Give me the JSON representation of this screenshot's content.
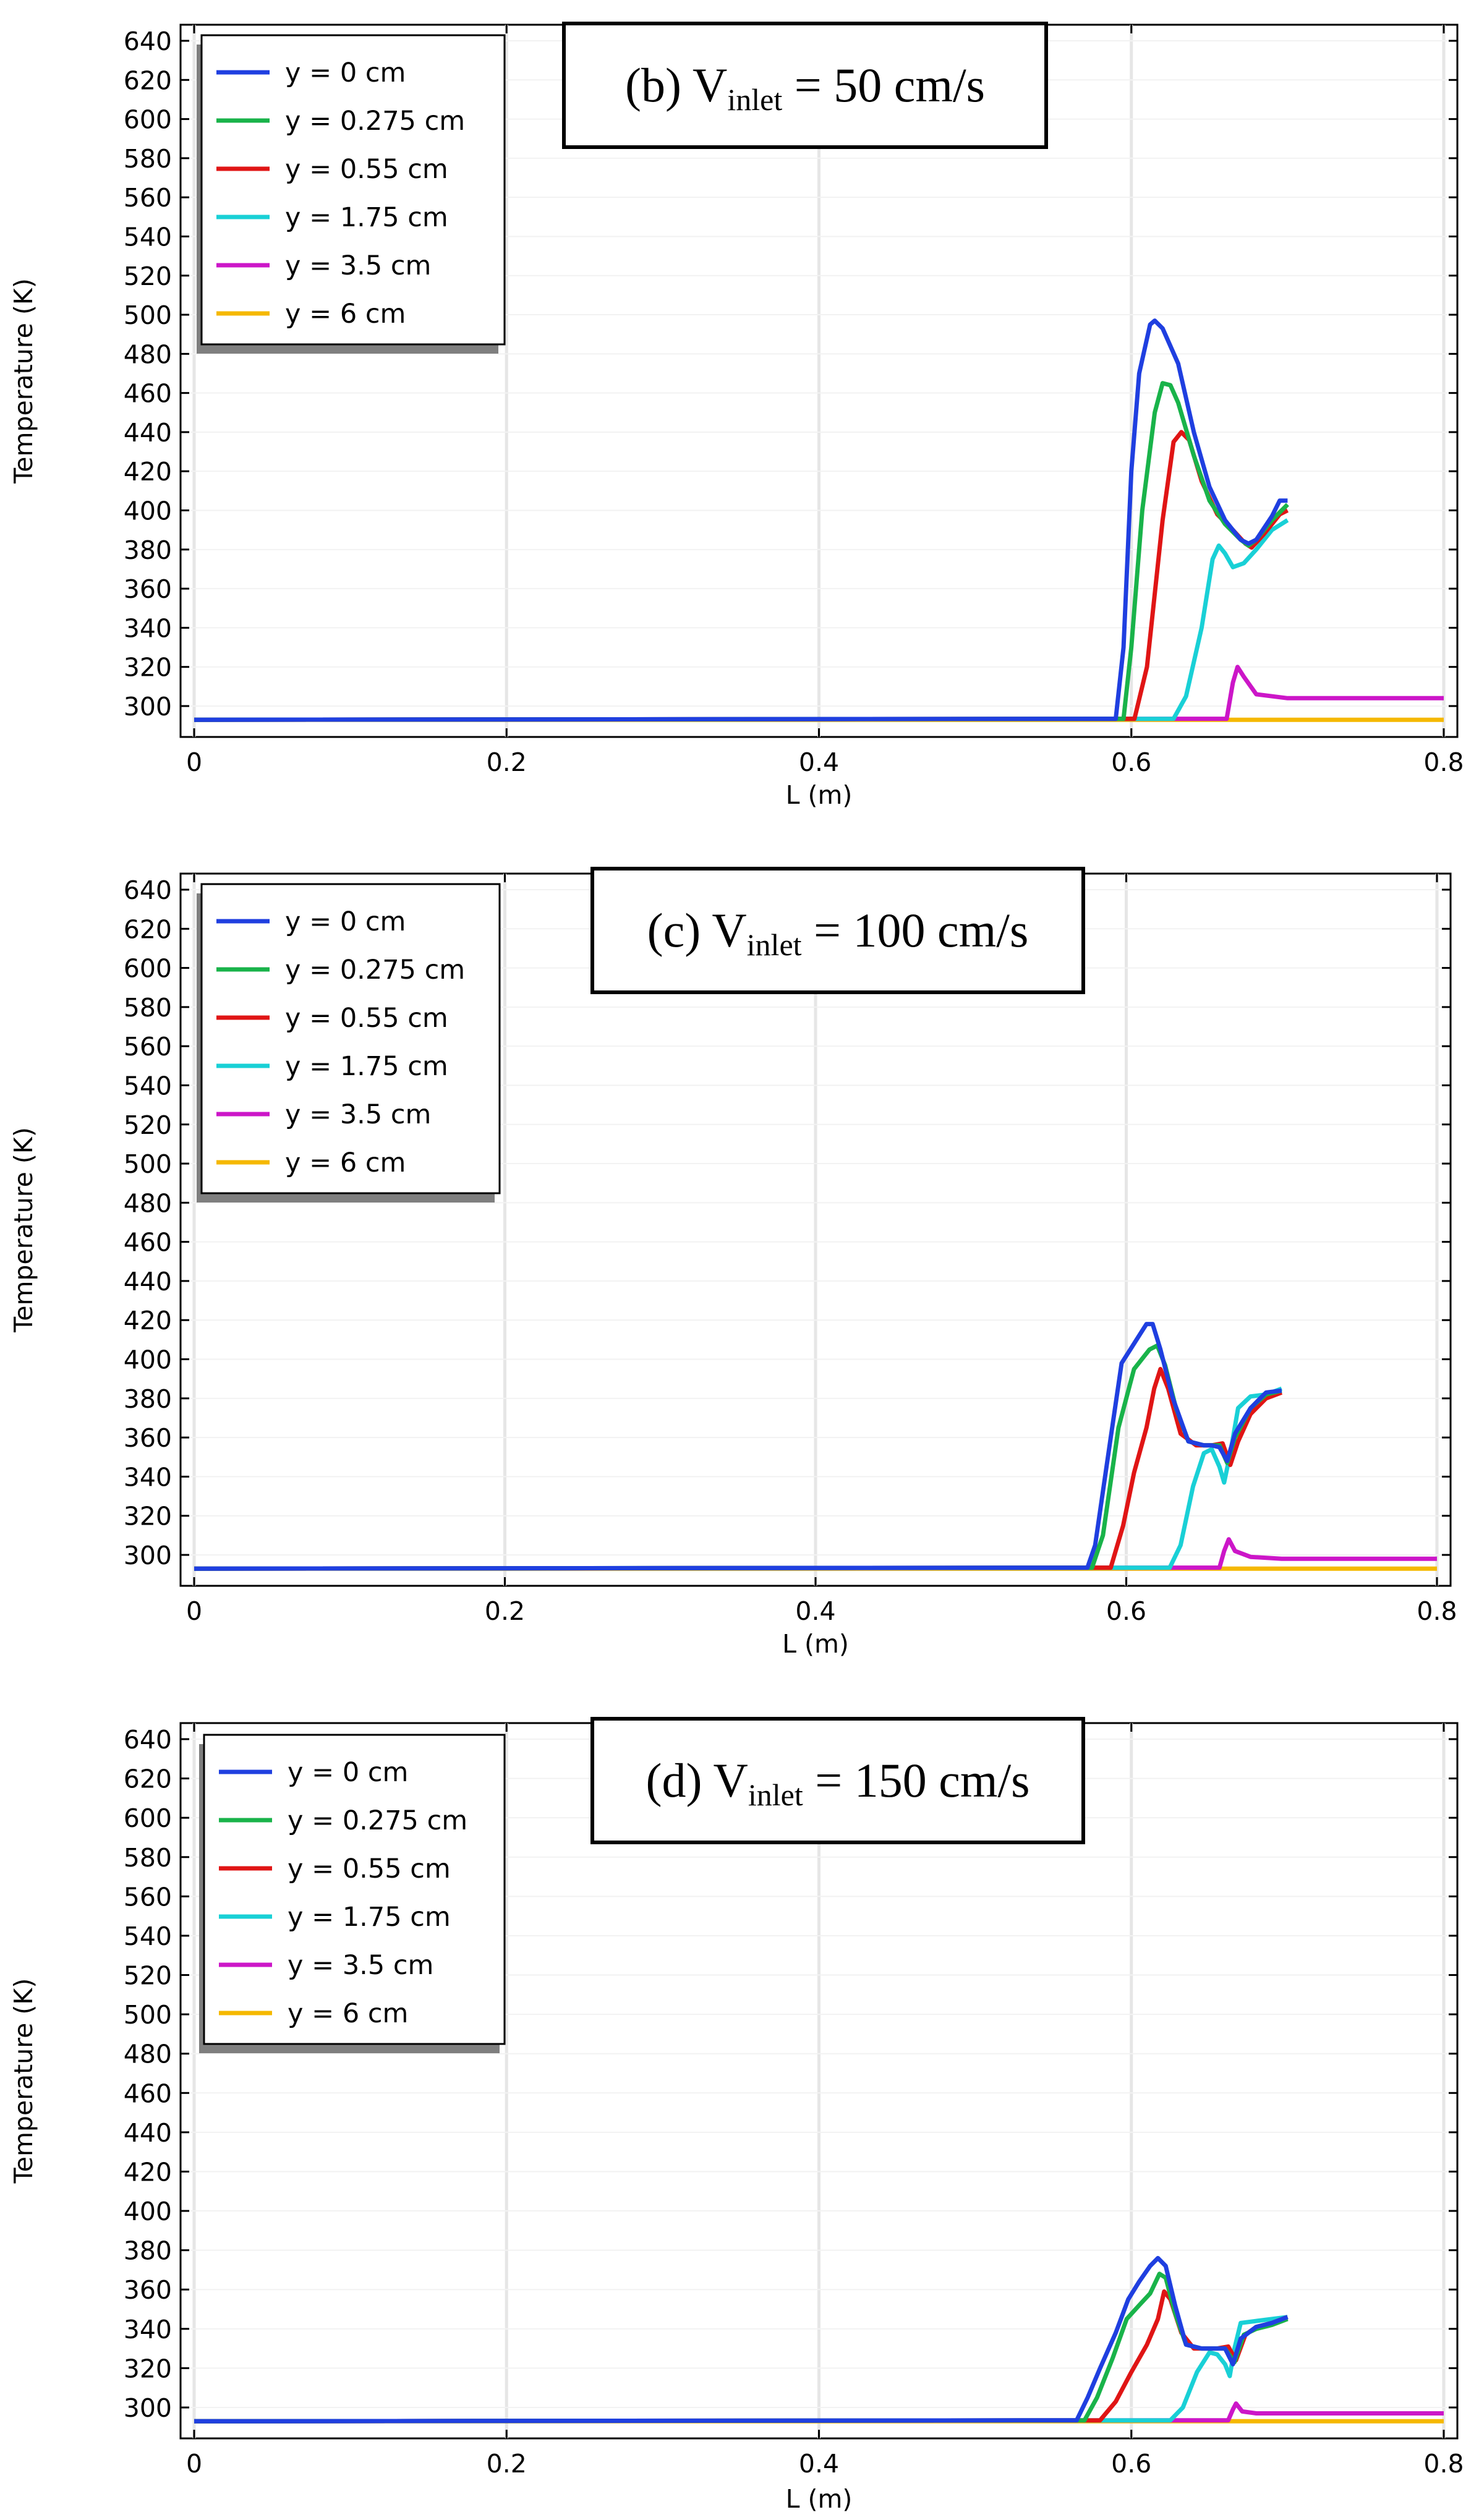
{
  "colors": {
    "blue": "#1f3fe0",
    "green": "#19b34a",
    "red": "#e01515",
    "cyan": "#19d0d6",
    "magenta": "#cc16c8",
    "yellow": "#f5b800"
  },
  "chart_data": [
    {
      "type": "line",
      "title": "(b) V",
      "title_sub": "inlet",
      "title_rest": " = 50 cm/s",
      "xlabel": "L (m)",
      "ylabel": "Temperature (K)",
      "xlim": [
        0,
        0.8
      ],
      "ylim": [
        290,
        645
      ],
      "xticks": [
        "0",
        "0.2",
        "0.4",
        "0.6",
        "0.8"
      ],
      "yticks": [
        "300",
        "320",
        "340",
        "360",
        "380",
        "400",
        "420",
        "440",
        "460",
        "480",
        "500",
        "520",
        "540",
        "560",
        "580",
        "600",
        "620",
        "640"
      ],
      "series": [
        {
          "name": "y = 0 cm",
          "color": "blue",
          "points": [
            [
              0,
              293
            ],
            [
              0.59,
              293.5
            ],
            [
              0.595,
              330
            ],
            [
              0.6,
              420
            ],
            [
              0.605,
              470
            ],
            [
              0.612,
              495
            ],
            [
              0.615,
              497
            ],
            [
              0.62,
              493
            ],
            [
              0.63,
              475
            ],
            [
              0.64,
              440
            ],
            [
              0.65,
              412
            ],
            [
              0.66,
              395
            ],
            [
              0.67,
              385
            ],
            [
              0.675,
              383
            ],
            [
              0.68,
              385
            ],
            [
              0.69,
              397
            ],
            [
              0.695,
              405
            ],
            [
              0.7,
              405
            ]
          ]
        },
        {
          "name": "y = 0.275 cm",
          "color": "green",
          "points": [
            [
              0,
              293
            ],
            [
              0.595,
              293.5
            ],
            [
              0.6,
              330
            ],
            [
              0.607,
              400
            ],
            [
              0.615,
              450
            ],
            [
              0.62,
              465
            ],
            [
              0.625,
              464
            ],
            [
              0.63,
              455
            ],
            [
              0.64,
              428
            ],
            [
              0.65,
              405
            ],
            [
              0.66,
              393
            ],
            [
              0.67,
              385
            ],
            [
              0.675,
              382
            ],
            [
              0.68,
              385
            ],
            [
              0.69,
              395
            ],
            [
              0.7,
              403
            ]
          ]
        },
        {
          "name": "y = 0.55 cm",
          "color": "red",
          "points": [
            [
              0,
              293
            ],
            [
              0.602,
              293.5
            ],
            [
              0.61,
              320
            ],
            [
              0.62,
              395
            ],
            [
              0.627,
              435
            ],
            [
              0.632,
              440
            ],
            [
              0.637,
              436
            ],
            [
              0.645,
              415
            ],
            [
              0.655,
              398
            ],
            [
              0.665,
              390
            ],
            [
              0.673,
              383
            ],
            [
              0.677,
              381
            ],
            [
              0.685,
              388
            ],
            [
              0.695,
              398
            ],
            [
              0.7,
              400
            ]
          ]
        },
        {
          "name": "y = 1.75 cm",
          "color": "cyan",
          "points": [
            [
              0,
              293
            ],
            [
              0.627,
              293.5
            ],
            [
              0.635,
              305
            ],
            [
              0.645,
              340
            ],
            [
              0.652,
              375
            ],
            [
              0.656,
              382
            ],
            [
              0.66,
              378
            ],
            [
              0.665,
              371
            ],
            [
              0.672,
              373
            ],
            [
              0.68,
              380
            ],
            [
              0.69,
              390
            ],
            [
              0.7,
              395
            ]
          ]
        },
        {
          "name": "y = 3.5 cm",
          "color": "magenta",
          "points": [
            [
              0,
              293
            ],
            [
              0.661,
              293.5
            ],
            [
              0.665,
              312
            ],
            [
              0.668,
              320
            ],
            [
              0.672,
              315
            ],
            [
              0.68,
              306
            ],
            [
              0.7,
              304
            ],
            [
              0.8,
              304
            ]
          ]
        },
        {
          "name": "y = 6 cm",
          "color": "yellow",
          "points": [
            [
              0,
              293
            ],
            [
              0.8,
              293
            ]
          ]
        }
      ]
    },
    {
      "type": "line",
      "title": "(c) V",
      "title_sub": "inlet",
      "title_rest": " = 100 cm/s",
      "xlabel": "L (m)",
      "ylabel": "Temperature (K)",
      "xlim": [
        0,
        0.8
      ],
      "ylim": [
        290,
        645
      ],
      "xticks": [
        "0",
        "0.2",
        "0.4",
        "0.6",
        "0.8"
      ],
      "yticks": [
        "300",
        "320",
        "340",
        "360",
        "380",
        "400",
        "420",
        "440",
        "460",
        "480",
        "500",
        "520",
        "540",
        "560",
        "580",
        "600",
        "620",
        "640"
      ],
      "series": [
        {
          "name": "y = 0 cm",
          "color": "blue",
          "points": [
            [
              0,
              293
            ],
            [
              0.575,
              293.5
            ],
            [
              0.58,
              305
            ],
            [
              0.59,
              360
            ],
            [
              0.597,
              398
            ],
            [
              0.605,
              408
            ],
            [
              0.613,
              418
            ],
            [
              0.617,
              418
            ],
            [
              0.622,
              405
            ],
            [
              0.63,
              380
            ],
            [
              0.64,
              358
            ],
            [
              0.65,
              356
            ],
            [
              0.655,
              356
            ],
            [
              0.66,
              355
            ],
            [
              0.665,
              348
            ],
            [
              0.67,
              362
            ],
            [
              0.68,
              375
            ],
            [
              0.69,
              383
            ],
            [
              0.7,
              384
            ]
          ]
        },
        {
          "name": "y = 0.275 cm",
          "color": "green",
          "points": [
            [
              0,
              293
            ],
            [
              0.578,
              293.5
            ],
            [
              0.585,
              310
            ],
            [
              0.595,
              365
            ],
            [
              0.605,
              395
            ],
            [
              0.615,
              405
            ],
            [
              0.62,
              407
            ],
            [
              0.625,
              397
            ],
            [
              0.632,
              375
            ],
            [
              0.64,
              358
            ],
            [
              0.65,
              356
            ],
            [
              0.66,
              356
            ],
            [
              0.665,
              347
            ],
            [
              0.67,
              360
            ],
            [
              0.68,
              375
            ],
            [
              0.69,
              382
            ],
            [
              0.7,
              384
            ]
          ]
        },
        {
          "name": "y = 0.55 cm",
          "color": "red",
          "points": [
            [
              0,
              293
            ],
            [
              0.59,
              293.5
            ],
            [
              0.598,
              315
            ],
            [
              0.605,
              342
            ],
            [
              0.613,
              365
            ],
            [
              0.618,
              385
            ],
            [
              0.622,
              395
            ],
            [
              0.627,
              385
            ],
            [
              0.635,
              362
            ],
            [
              0.645,
              356
            ],
            [
              0.655,
              356
            ],
            [
              0.662,
              357
            ],
            [
              0.667,
              346
            ],
            [
              0.672,
              358
            ],
            [
              0.68,
              372
            ],
            [
              0.69,
              380
            ],
            [
              0.7,
              383
            ]
          ]
        },
        {
          "name": "y = 1.75 cm",
          "color": "cyan",
          "points": [
            [
              0,
              293
            ],
            [
              0.628,
              293.5
            ],
            [
              0.635,
              305
            ],
            [
              0.643,
              335
            ],
            [
              0.65,
              352
            ],
            [
              0.655,
              354
            ],
            [
              0.66,
              345
            ],
            [
              0.663,
              337
            ],
            [
              0.667,
              352
            ],
            [
              0.672,
              375
            ],
            [
              0.68,
              381
            ],
            [
              0.69,
              382
            ],
            [
              0.7,
              385
            ]
          ]
        },
        {
          "name": "y = 3.5 cm",
          "color": "magenta",
          "points": [
            [
              0,
              293
            ],
            [
              0.66,
              293.5
            ],
            [
              0.663,
              302
            ],
            [
              0.666,
              308
            ],
            [
              0.67,
              302
            ],
            [
              0.68,
              299
            ],
            [
              0.7,
              298
            ],
            [
              0.8,
              298
            ]
          ]
        },
        {
          "name": "y = 6 cm",
          "color": "yellow",
          "points": [
            [
              0,
              293
            ],
            [
              0.8,
              293
            ]
          ]
        }
      ]
    },
    {
      "type": "line",
      "title": "(d) V",
      "title_sub": "inlet",
      "title_rest": " = 150 cm/s",
      "xlabel": "L (m)",
      "ylabel": "Temperature (K)",
      "xlim": [
        0,
        0.8
      ],
      "ylim": [
        290,
        645
      ],
      "xticks": [
        "0",
        "0.2",
        "0.4",
        "0.6",
        "0.8"
      ],
      "yticks": [
        "300",
        "320",
        "340",
        "360",
        "380",
        "400",
        "420",
        "440",
        "460",
        "480",
        "500",
        "520",
        "540",
        "560",
        "580",
        "600",
        "620",
        "640"
      ],
      "series": [
        {
          "name": "y = 0 cm",
          "color": "blue",
          "points": [
            [
              0,
              293
            ],
            [
              0.565,
              293.5
            ],
            [
              0.572,
              305
            ],
            [
              0.58,
              320
            ],
            [
              0.59,
              338
            ],
            [
              0.598,
              355
            ],
            [
              0.605,
              364
            ],
            [
              0.612,
              372
            ],
            [
              0.617,
              376
            ],
            [
              0.622,
              372
            ],
            [
              0.628,
              352
            ],
            [
              0.635,
              332
            ],
            [
              0.645,
              330
            ],
            [
              0.655,
              330
            ],
            [
              0.66,
              330
            ],
            [
              0.665,
              322
            ],
            [
              0.67,
              335
            ],
            [
              0.68,
              341
            ],
            [
              0.69,
              343
            ],
            [
              0.7,
              346
            ]
          ]
        },
        {
          "name": "y = 0.275 cm",
          "color": "green",
          "points": [
            [
              0,
              293
            ],
            [
              0.57,
              293.5
            ],
            [
              0.578,
              305
            ],
            [
              0.588,
              325
            ],
            [
              0.597,
              345
            ],
            [
              0.605,
              352
            ],
            [
              0.612,
              358
            ],
            [
              0.618,
              368
            ],
            [
              0.622,
              366
            ],
            [
              0.628,
              348
            ],
            [
              0.635,
              332
            ],
            [
              0.645,
              330
            ],
            [
              0.66,
              330
            ],
            [
              0.666,
              323
            ],
            [
              0.672,
              337
            ],
            [
              0.68,
              340
            ],
            [
              0.69,
              342
            ],
            [
              0.7,
              345
            ]
          ]
        },
        {
          "name": "y = 0.55 cm",
          "color": "red",
          "points": [
            [
              0,
              293
            ],
            [
              0.58,
              293.5
            ],
            [
              0.59,
              303
            ],
            [
              0.6,
              318
            ],
            [
              0.61,
              332
            ],
            [
              0.617,
              345
            ],
            [
              0.621,
              359
            ],
            [
              0.625,
              355
            ],
            [
              0.632,
              338
            ],
            [
              0.64,
              330
            ],
            [
              0.655,
              330
            ],
            [
              0.662,
              331
            ],
            [
              0.667,
              324
            ],
            [
              0.673,
              337
            ],
            [
              0.68,
              341
            ],
            [
              0.69,
              343
            ],
            [
              0.7,
              346
            ]
          ]
        },
        {
          "name": "y = 1.75 cm",
          "color": "cyan",
          "points": [
            [
              0,
              293
            ],
            [
              0.625,
              293.5
            ],
            [
              0.633,
              300
            ],
            [
              0.642,
              318
            ],
            [
              0.65,
              328
            ],
            [
              0.655,
              327
            ],
            [
              0.66,
              322
            ],
            [
              0.663,
              316
            ],
            [
              0.666,
              330
            ],
            [
              0.67,
              343
            ],
            [
              0.68,
              344
            ],
            [
              0.69,
              345
            ],
            [
              0.7,
              346
            ]
          ]
        },
        {
          "name": "y = 3.5 cm",
          "color": "magenta",
          "points": [
            [
              0,
              293
            ],
            [
              0.662,
              293.5
            ],
            [
              0.665,
              299
            ],
            [
              0.667,
              302
            ],
            [
              0.671,
              298
            ],
            [
              0.68,
              297
            ],
            [
              0.7,
              297
            ],
            [
              0.8,
              297
            ]
          ]
        },
        {
          "name": "y = 6 cm",
          "color": "yellow",
          "points": [
            [
              0,
              293
            ],
            [
              0.8,
              293
            ]
          ]
        }
      ]
    }
  ]
}
